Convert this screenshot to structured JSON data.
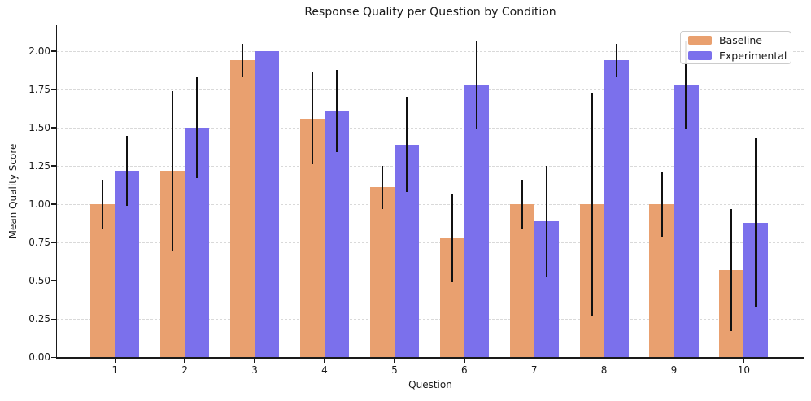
{
  "title": "Response Quality per Question by Condition",
  "colors": {
    "baseline": "#E9A06F",
    "experimental": "#7B70EC",
    "error_bar": "#111111",
    "grid": "#d9d9d9",
    "spine": "#1a1a1a",
    "background": "#ffffff"
  },
  "legend": {
    "position": "upper right",
    "items": [
      {
        "label": "Baseline"
      },
      {
        "label": "Experimental"
      }
    ]
  },
  "chart_data": {
    "type": "bar",
    "title": "Response Quality per Question by Condition",
    "xlabel": "Question",
    "ylabel": "Mean Quality Score",
    "categories": [
      "1",
      "2",
      "3",
      "4",
      "5",
      "6",
      "7",
      "8",
      "9",
      "10"
    ],
    "series": [
      {
        "name": "Baseline",
        "color": "#E9A06F",
        "values": [
          1.0,
          1.22,
          1.94,
          1.56,
          1.11,
          0.78,
          1.0,
          1.0,
          1.0,
          0.57
        ],
        "errors": [
          0.16,
          0.52,
          0.11,
          0.3,
          0.14,
          0.29,
          0.16,
          0.73,
          0.21,
          0.4
        ]
      },
      {
        "name": "Experimental",
        "color": "#7B70EC",
        "values": [
          1.22,
          1.5,
          2.0,
          1.61,
          1.39,
          1.78,
          0.89,
          1.94,
          1.78,
          0.88
        ],
        "errors": [
          0.23,
          0.33,
          0.0,
          0.27,
          0.31,
          0.29,
          0.36,
          0.11,
          0.29,
          0.55
        ]
      }
    ],
    "ylim": [
      0,
      2.17
    ],
    "yticks": [
      0,
      0.25,
      0.5,
      0.75,
      1.0,
      1.25,
      1.5,
      1.75,
      2.0
    ],
    "ytick_labels": [
      "0.00",
      "0.25",
      "0.50",
      "0.75",
      "1.00",
      "1.25",
      "1.50",
      "1.75",
      "2.00"
    ],
    "grid": "horizontal dashed major",
    "legend_position": "upper right",
    "bar_width": 0.35,
    "error_bars": "vertical black lines, no caps"
  }
}
